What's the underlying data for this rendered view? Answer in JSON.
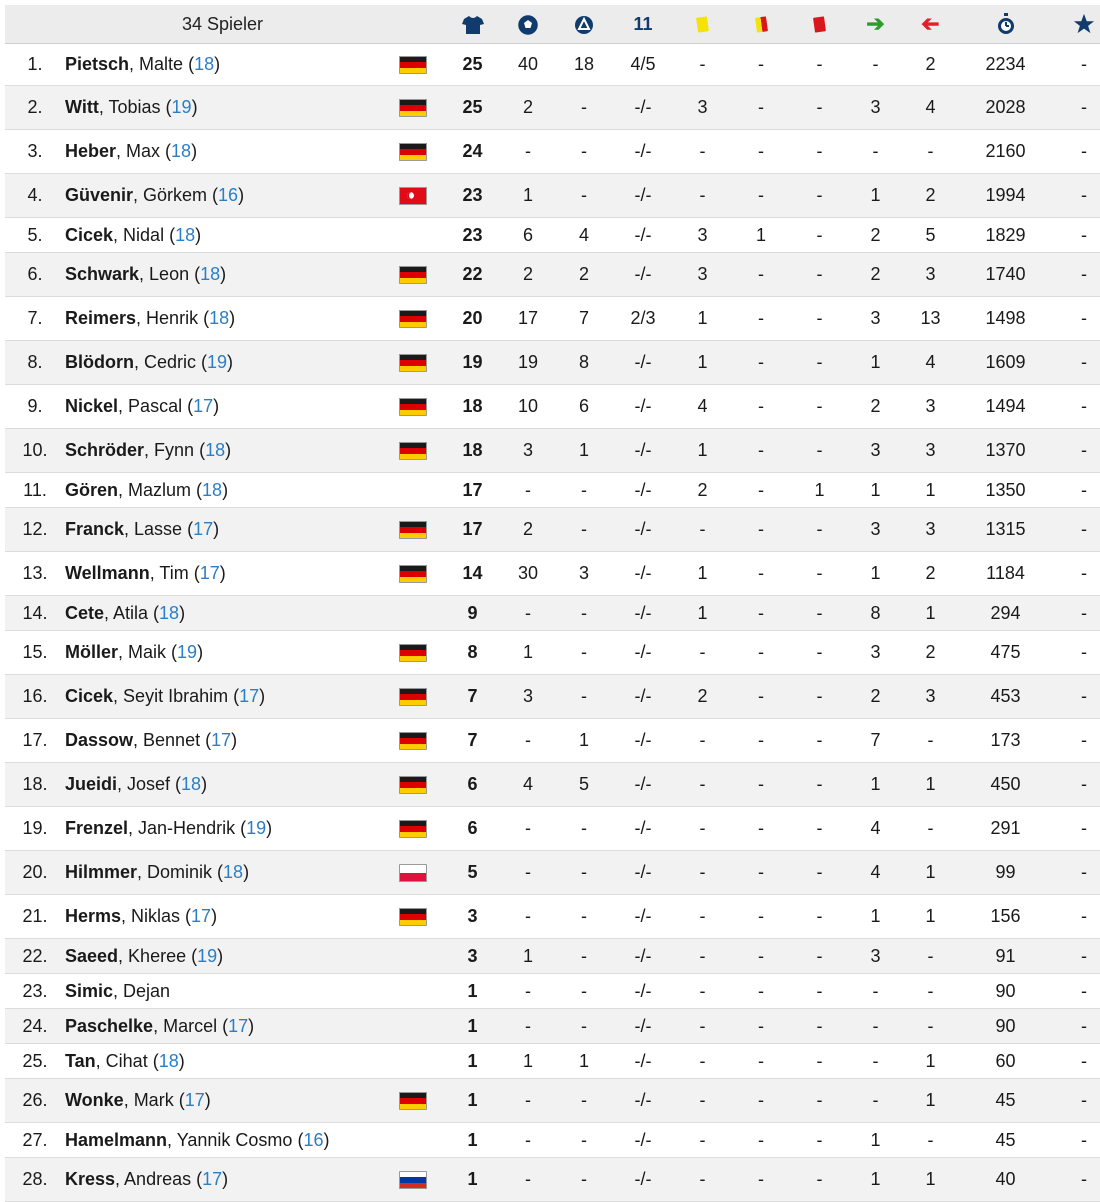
{
  "header": {
    "players_label": "34 Spieler",
    "penalties_label": "11",
    "icons": [
      "shirt-icon",
      "football-icon",
      "assist-icon",
      "yellow-card-icon",
      "yellow-red-card-icon",
      "red-card-icon",
      "sub-in-arrow-icon",
      "sub-out-arrow-icon",
      "stopwatch-icon",
      "star-icon"
    ]
  },
  "players": [
    {
      "rank": "1.",
      "surname": "Pietsch",
      "firstname": ", Malte",
      "age": "18",
      "nat": "DE",
      "apps": "25",
      "goals": "40",
      "assists": "18",
      "pens": "4/5",
      "yellow": "-",
      "yellowred": "-",
      "red": "-",
      "sub_in": "-",
      "sub_out": "2",
      "minutes": "2234",
      "star": "-"
    },
    {
      "rank": "2.",
      "surname": "Witt",
      "firstname": ", Tobias",
      "age": "19",
      "nat": "DE",
      "apps": "25",
      "goals": "2",
      "assists": "-",
      "pens": "-/-",
      "yellow": "3",
      "yellowred": "-",
      "red": "-",
      "sub_in": "3",
      "sub_out": "4",
      "minutes": "2028",
      "star": "-"
    },
    {
      "rank": "3.",
      "surname": "Heber",
      "firstname": ", Max",
      "age": "18",
      "nat": "DE",
      "apps": "24",
      "goals": "-",
      "assists": "-",
      "pens": "-/-",
      "yellow": "-",
      "yellowred": "-",
      "red": "-",
      "sub_in": "-",
      "sub_out": "-",
      "minutes": "2160",
      "star": "-"
    },
    {
      "rank": "4.",
      "surname": "Güvenir",
      "firstname": ", Görkem",
      "age": "16",
      "nat": "TR",
      "apps": "23",
      "goals": "1",
      "assists": "-",
      "pens": "-/-",
      "yellow": "-",
      "yellowred": "-",
      "red": "-",
      "sub_in": "1",
      "sub_out": "2",
      "minutes": "1994",
      "star": "-"
    },
    {
      "rank": "5.",
      "surname": "Cicek",
      "firstname": ", Nidal",
      "age": "18",
      "nat": "",
      "apps": "23",
      "goals": "6",
      "assists": "4",
      "pens": "-/-",
      "yellow": "3",
      "yellowred": "1",
      "red": "-",
      "sub_in": "2",
      "sub_out": "5",
      "minutes": "1829",
      "star": "-"
    },
    {
      "rank": "6.",
      "surname": "Schwark",
      "firstname": ", Leon",
      "age": "18",
      "nat": "DE",
      "apps": "22",
      "goals": "2",
      "assists": "2",
      "pens": "-/-",
      "yellow": "3",
      "yellowred": "-",
      "red": "-",
      "sub_in": "2",
      "sub_out": "3",
      "minutes": "1740",
      "star": "-"
    },
    {
      "rank": "7.",
      "surname": "Reimers",
      "firstname": ", Henrik",
      "age": "18",
      "nat": "DE",
      "apps": "20",
      "goals": "17",
      "assists": "7",
      "pens": "2/3",
      "yellow": "1",
      "yellowred": "-",
      "red": "-",
      "sub_in": "3",
      "sub_out": "13",
      "minutes": "1498",
      "star": "-"
    },
    {
      "rank": "8.",
      "surname": "Blödorn",
      "firstname": ", Cedric",
      "age": "19",
      "nat": "DE",
      "apps": "19",
      "goals": "19",
      "assists": "8",
      "pens": "-/-",
      "yellow": "1",
      "yellowred": "-",
      "red": "-",
      "sub_in": "1",
      "sub_out": "4",
      "minutes": "1609",
      "star": "-"
    },
    {
      "rank": "9.",
      "surname": "Nickel",
      "firstname": ", Pascal",
      "age": "17",
      "nat": "DE",
      "apps": "18",
      "goals": "10",
      "assists": "6",
      "pens": "-/-",
      "yellow": "4",
      "yellowred": "-",
      "red": "-",
      "sub_in": "2",
      "sub_out": "3",
      "minutes": "1494",
      "star": "-"
    },
    {
      "rank": "10.",
      "surname": "Schröder",
      "firstname": ", Fynn",
      "age": "18",
      "nat": "DE",
      "apps": "18",
      "goals": "3",
      "assists": "1",
      "pens": "-/-",
      "yellow": "1",
      "yellowred": "-",
      "red": "-",
      "sub_in": "3",
      "sub_out": "3",
      "minutes": "1370",
      "star": "-"
    },
    {
      "rank": "11.",
      "surname": "Gören",
      "firstname": ", Mazlum",
      "age": "18",
      "nat": "",
      "apps": "17",
      "goals": "-",
      "assists": "-",
      "pens": "-/-",
      "yellow": "2",
      "yellowred": "-",
      "red": "1",
      "sub_in": "1",
      "sub_out": "1",
      "minutes": "1350",
      "star": "-"
    },
    {
      "rank": "12.",
      "surname": "Franck",
      "firstname": ", Lasse",
      "age": "17",
      "nat": "DE",
      "apps": "17",
      "goals": "2",
      "assists": "-",
      "pens": "-/-",
      "yellow": "-",
      "yellowred": "-",
      "red": "-",
      "sub_in": "3",
      "sub_out": "3",
      "minutes": "1315",
      "star": "-"
    },
    {
      "rank": "13.",
      "surname": "Wellmann",
      "firstname": ", Tim",
      "age": "17",
      "nat": "DE",
      "apps": "14",
      "goals": "30",
      "assists": "3",
      "pens": "-/-",
      "yellow": "1",
      "yellowred": "-",
      "red": "-",
      "sub_in": "1",
      "sub_out": "2",
      "minutes": "1184",
      "star": "-"
    },
    {
      "rank": "14.",
      "surname": "Cete",
      "firstname": ", Atila",
      "age": "18",
      "nat": "",
      "apps": "9",
      "goals": "-",
      "assists": "-",
      "pens": "-/-",
      "yellow": "1",
      "yellowred": "-",
      "red": "-",
      "sub_in": "8",
      "sub_out": "1",
      "minutes": "294",
      "star": "-"
    },
    {
      "rank": "15.",
      "surname": "Möller",
      "firstname": ", Maik",
      "age": "19",
      "nat": "DE",
      "apps": "8",
      "goals": "1",
      "assists": "-",
      "pens": "-/-",
      "yellow": "-",
      "yellowred": "-",
      "red": "-",
      "sub_in": "3",
      "sub_out": "2",
      "minutes": "475",
      "star": "-"
    },
    {
      "rank": "16.",
      "surname": "Cicek",
      "firstname": ", Seyit Ibrahim",
      "age": "17",
      "nat": "DE",
      "apps": "7",
      "goals": "3",
      "assists": "-",
      "pens": "-/-",
      "yellow": "2",
      "yellowred": "-",
      "red": "-",
      "sub_in": "2",
      "sub_out": "3",
      "minutes": "453",
      "star": "-"
    },
    {
      "rank": "17.",
      "surname": "Dassow",
      "firstname": ", Bennet",
      "age": "17",
      "nat": "DE",
      "apps": "7",
      "goals": "-",
      "assists": "1",
      "pens": "-/-",
      "yellow": "-",
      "yellowred": "-",
      "red": "-",
      "sub_in": "7",
      "sub_out": "-",
      "minutes": "173",
      "star": "-"
    },
    {
      "rank": "18.",
      "surname": "Jueidi",
      "firstname": ", Josef",
      "age": "18",
      "nat": "DE",
      "apps": "6",
      "goals": "4",
      "assists": "5",
      "pens": "-/-",
      "yellow": "-",
      "yellowred": "-",
      "red": "-",
      "sub_in": "1",
      "sub_out": "1",
      "minutes": "450",
      "star": "-"
    },
    {
      "rank": "19.",
      "surname": "Frenzel",
      "firstname": ", Jan-Hendrik",
      "age": "19",
      "nat": "DE",
      "apps": "6",
      "goals": "-",
      "assists": "-",
      "pens": "-/-",
      "yellow": "-",
      "yellowred": "-",
      "red": "-",
      "sub_in": "4",
      "sub_out": "-",
      "minutes": "291",
      "star": "-"
    },
    {
      "rank": "20.",
      "surname": "Hilmmer",
      "firstname": ", Dominik",
      "age": "18",
      "nat": "PL",
      "apps": "5",
      "goals": "-",
      "assists": "-",
      "pens": "-/-",
      "yellow": "-",
      "yellowred": "-",
      "red": "-",
      "sub_in": "4",
      "sub_out": "1",
      "minutes": "99",
      "star": "-"
    },
    {
      "rank": "21.",
      "surname": "Herms",
      "firstname": ", Niklas",
      "age": "17",
      "nat": "DE",
      "apps": "3",
      "goals": "-",
      "assists": "-",
      "pens": "-/-",
      "yellow": "-",
      "yellowred": "-",
      "red": "-",
      "sub_in": "1",
      "sub_out": "1",
      "minutes": "156",
      "star": "-"
    },
    {
      "rank": "22.",
      "surname": "Saeed",
      "firstname": ", Kheree",
      "age": "19",
      "nat": "",
      "apps": "3",
      "goals": "1",
      "assists": "-",
      "pens": "-/-",
      "yellow": "-",
      "yellowred": "-",
      "red": "-",
      "sub_in": "3",
      "sub_out": "-",
      "minutes": "91",
      "star": "-"
    },
    {
      "rank": "23.",
      "surname": "Simic",
      "firstname": ", Dejan",
      "age": "",
      "nat": "",
      "apps": "1",
      "goals": "-",
      "assists": "-",
      "pens": "-/-",
      "yellow": "-",
      "yellowred": "-",
      "red": "-",
      "sub_in": "-",
      "sub_out": "-",
      "minutes": "90",
      "star": "-"
    },
    {
      "rank": "24.",
      "surname": "Paschelke",
      "firstname": ", Marcel",
      "age": "17",
      "nat": "",
      "apps": "1",
      "goals": "-",
      "assists": "-",
      "pens": "-/-",
      "yellow": "-",
      "yellowred": "-",
      "red": "-",
      "sub_in": "-",
      "sub_out": "-",
      "minutes": "90",
      "star": "-"
    },
    {
      "rank": "25.",
      "surname": "Tan",
      "firstname": ", Cihat",
      "age": "18",
      "nat": "",
      "apps": "1",
      "goals": "1",
      "assists": "1",
      "pens": "-/-",
      "yellow": "-",
      "yellowred": "-",
      "red": "-",
      "sub_in": "-",
      "sub_out": "1",
      "minutes": "60",
      "star": "-"
    },
    {
      "rank": "26.",
      "surname": "Wonke",
      "firstname": ", Mark",
      "age": "17",
      "nat": "DE",
      "apps": "1",
      "goals": "-",
      "assists": "-",
      "pens": "-/-",
      "yellow": "-",
      "yellowred": "-",
      "red": "-",
      "sub_in": "-",
      "sub_out": "1",
      "minutes": "45",
      "star": "-"
    },
    {
      "rank": "27.",
      "surname": "Hamelmann",
      "firstname": ", Yannik Cosmo",
      "age": "16",
      "nat": "",
      "apps": "1",
      "goals": "-",
      "assists": "-",
      "pens": "-/-",
      "yellow": "-",
      "yellowred": "-",
      "red": "-",
      "sub_in": "1",
      "sub_out": "-",
      "minutes": "45",
      "star": "-"
    },
    {
      "rank": "28.",
      "surname": "Kress",
      "firstname": ", Andreas",
      "age": "17",
      "nat": "RU",
      "apps": "1",
      "goals": "-",
      "assists": "-",
      "pens": "-/-",
      "yellow": "-",
      "yellowred": "-",
      "red": "-",
      "sub_in": "1",
      "sub_out": "1",
      "minutes": "40",
      "star": "-"
    }
  ]
}
